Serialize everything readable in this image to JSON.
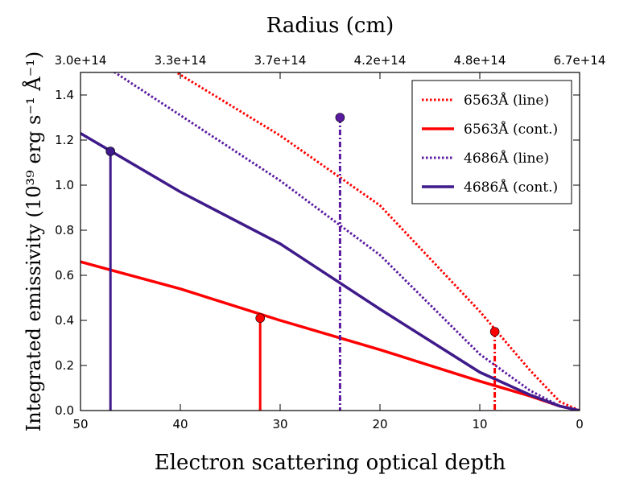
{
  "chart_data": {
    "type": "line",
    "title_top_axis": "Radius  (cm)",
    "xlabel": "Electron  scattering  optical  depth",
    "ylabel": "Integrated  emissivity  (10³⁹  erg  s⁻¹  Å⁻¹)",
    "xlim": [
      50,
      0
    ],
    "ylim": [
      0,
      1.5
    ],
    "x_ticks": [
      50,
      40,
      30,
      20,
      10,
      0
    ],
    "y_ticks": [
      0.0,
      0.2,
      0.4,
      0.6,
      0.8,
      1.0,
      1.2,
      1.4
    ],
    "x_tick_labels": [
      "50",
      "40",
      "30",
      "20",
      "10",
      "0"
    ],
    "y_tick_labels": [
      "0.0",
      "0.2",
      "0.4",
      "0.6",
      "0.8",
      "1.0",
      "1.2",
      "1.4"
    ],
    "top_axis_ticks": [
      {
        "x": 50,
        "label": "3.0e+14"
      },
      {
        "x": 40,
        "label": "3.3e+14"
      },
      {
        "x": 30,
        "label": "3.7e+14"
      },
      {
        "x": 20,
        "label": "4.2e+14"
      },
      {
        "x": 10,
        "label": "4.8e+14"
      },
      {
        "x": 0,
        "label": "6.7e+14"
      }
    ],
    "grid": false,
    "legend_position": "top-right",
    "series": [
      {
        "name": "6563Å   (line)",
        "style": "dotted",
        "color": "#ff0000",
        "x": [
          50,
          40,
          30,
          20,
          10,
          5,
          2,
          0
        ],
        "y": [
          1.75,
          1.49,
          1.22,
          0.91,
          0.44,
          0.18,
          0.04,
          0.0
        ]
      },
      {
        "name": "6563Å   (cont.)",
        "style": "solid",
        "color": "#ff0000",
        "x": [
          50,
          40,
          30,
          20,
          10,
          5,
          2,
          0
        ],
        "y": [
          0.66,
          0.54,
          0.4,
          0.27,
          0.13,
          0.065,
          0.02,
          0.0
        ]
      },
      {
        "name": "4686Å   (line)",
        "style": "dotted",
        "color": "#5a1aa0",
        "x": [
          50,
          40,
          30,
          20,
          10,
          5,
          2,
          0
        ],
        "y": [
          1.6,
          1.31,
          1.02,
          0.69,
          0.25,
          0.09,
          0.02,
          0.0
        ]
      },
      {
        "name": "4686Å   (cont.)",
        "style": "solid",
        "color": "#3f1a8a",
        "x": [
          50,
          40,
          30,
          20,
          10,
          5,
          2,
          0
        ],
        "y": [
          1.23,
          0.97,
          0.74,
          0.45,
          0.17,
          0.07,
          0.02,
          0.0
        ]
      }
    ],
    "markers": [
      {
        "x": 47,
        "y": 1.15,
        "color": "#3f1a8a",
        "stem": "solid"
      },
      {
        "x": 32,
        "y": 0.41,
        "color": "#ff0000",
        "stem": "solid"
      },
      {
        "x": 24,
        "y": 1.3,
        "color": "#5a1aa0",
        "stem": "dashdot"
      },
      {
        "x": 8.5,
        "y": 0.35,
        "color": "#ff0000",
        "stem": "dashdot"
      }
    ]
  }
}
